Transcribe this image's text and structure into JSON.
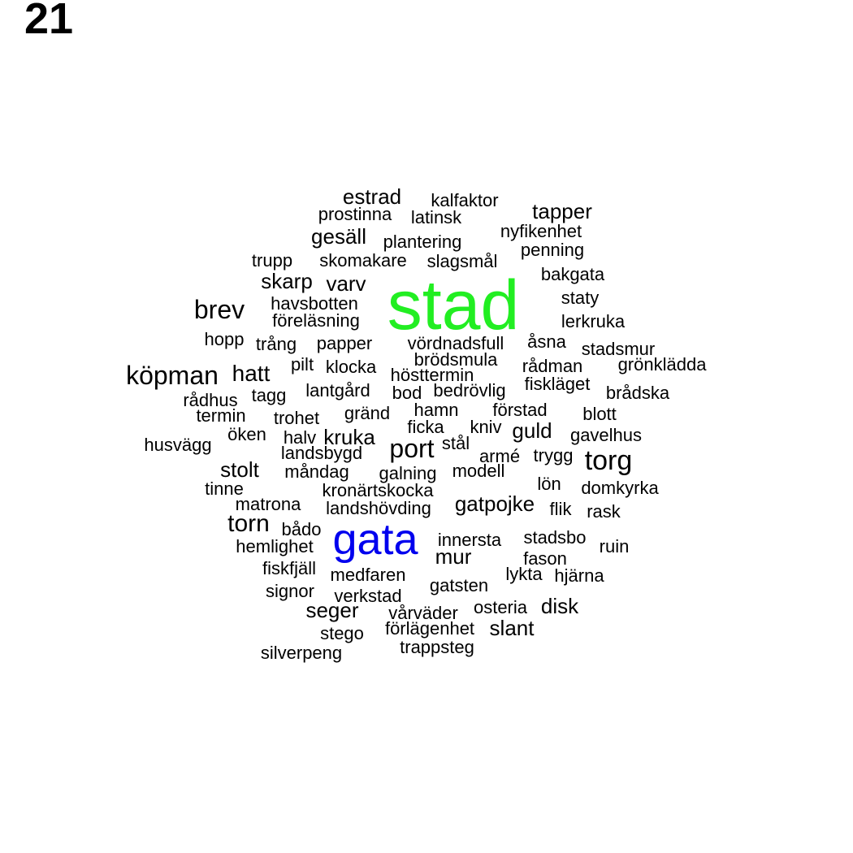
{
  "figure_number": "21",
  "colors": {
    "highlight_1": "#22ee22",
    "highlight_2": "#0000ee",
    "default": "#000000"
  },
  "words": [
    {
      "text": "stad",
      "color": "#22ee22"
    },
    {
      "text": "gata",
      "color": "#0000ee"
    },
    {
      "text": "estrad"
    },
    {
      "text": "kalfaktor"
    },
    {
      "text": "prostinna"
    },
    {
      "text": "latinsk"
    },
    {
      "text": "tapper"
    },
    {
      "text": "gesäll"
    },
    {
      "text": "plantering"
    },
    {
      "text": "nyfikenhet"
    },
    {
      "text": "penning"
    },
    {
      "text": "trupp"
    },
    {
      "text": "skomakare"
    },
    {
      "text": "slagsmål"
    },
    {
      "text": "bakgata"
    },
    {
      "text": "skarp"
    },
    {
      "text": "varv"
    },
    {
      "text": "staty"
    },
    {
      "text": "brev"
    },
    {
      "text": "havsbotten"
    },
    {
      "text": "föreläsning"
    },
    {
      "text": "lerkruka"
    },
    {
      "text": "hopp"
    },
    {
      "text": "trång"
    },
    {
      "text": "papper"
    },
    {
      "text": "vördnadsfull"
    },
    {
      "text": "åsna"
    },
    {
      "text": "stadsmur"
    },
    {
      "text": "brödsmula"
    },
    {
      "text": "pilt"
    },
    {
      "text": "klocka"
    },
    {
      "text": "rådman"
    },
    {
      "text": "grönklädda"
    },
    {
      "text": "köpman"
    },
    {
      "text": "hatt"
    },
    {
      "text": "hösttermin"
    },
    {
      "text": "fiskläget"
    },
    {
      "text": "lantgård"
    },
    {
      "text": "bod"
    },
    {
      "text": "bedrövlig"
    },
    {
      "text": "brådska"
    },
    {
      "text": "rådhus"
    },
    {
      "text": "tagg"
    },
    {
      "text": "hamn"
    },
    {
      "text": "förstad"
    },
    {
      "text": "termin"
    },
    {
      "text": "trohet"
    },
    {
      "text": "gränd"
    },
    {
      "text": "blott"
    },
    {
      "text": "ficka"
    },
    {
      "text": "kniv"
    },
    {
      "text": "guld"
    },
    {
      "text": "öken"
    },
    {
      "text": "halv"
    },
    {
      "text": "kruka"
    },
    {
      "text": "gavelhus"
    },
    {
      "text": "husvägg"
    },
    {
      "text": "port"
    },
    {
      "text": "stål"
    },
    {
      "text": "landsbygd"
    },
    {
      "text": "armé"
    },
    {
      "text": "trygg"
    },
    {
      "text": "torg"
    },
    {
      "text": "stolt"
    },
    {
      "text": "måndag"
    },
    {
      "text": "galning"
    },
    {
      "text": "modell"
    },
    {
      "text": "lön"
    },
    {
      "text": "tinne"
    },
    {
      "text": "kronärtskocka"
    },
    {
      "text": "domkyrka"
    },
    {
      "text": "matrona"
    },
    {
      "text": "gatpojke"
    },
    {
      "text": "landshövding"
    },
    {
      "text": "flik"
    },
    {
      "text": "rask"
    },
    {
      "text": "torn"
    },
    {
      "text": "bådo"
    },
    {
      "text": "innersta"
    },
    {
      "text": "stadsbo"
    },
    {
      "text": "hemlighet"
    },
    {
      "text": "ruin"
    },
    {
      "text": "mur"
    },
    {
      "text": "fason"
    },
    {
      "text": "fiskfjäll"
    },
    {
      "text": "medfaren"
    },
    {
      "text": "lykta"
    },
    {
      "text": "hjärna"
    },
    {
      "text": "gatsten"
    },
    {
      "text": "signor"
    },
    {
      "text": "verkstad"
    },
    {
      "text": "seger"
    },
    {
      "text": "osteria"
    },
    {
      "text": "disk"
    },
    {
      "text": "vårväder"
    },
    {
      "text": "förlägenhet"
    },
    {
      "text": "slant"
    },
    {
      "text": "stego"
    },
    {
      "text": "trappsteg"
    },
    {
      "text": "silverpeng"
    }
  ]
}
